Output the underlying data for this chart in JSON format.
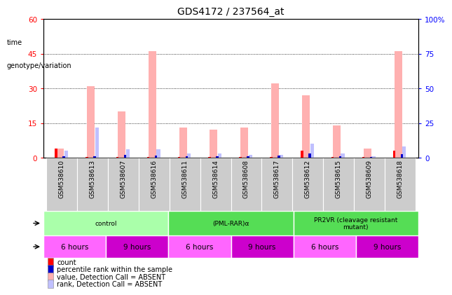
{
  "title": "GDS4172 / 237564_at",
  "samples": [
    "GSM538610",
    "GSM538613",
    "GSM538607",
    "GSM538616",
    "GSM538611",
    "GSM538614",
    "GSM538608",
    "GSM538617",
    "GSM538612",
    "GSM538615",
    "GSM538609",
    "GSM538618"
  ],
  "absent_value_bars": [
    4,
    31,
    20,
    46,
    13,
    12,
    13,
    32,
    27,
    14,
    4,
    46
  ],
  "absent_rank_bars": [
    5,
    22,
    6,
    6,
    3,
    3,
    2,
    2,
    10,
    3,
    1,
    8
  ],
  "count_values": [
    4,
    0.3,
    0.3,
    0.3,
    0.3,
    0.3,
    0.3,
    0.3,
    3,
    0.3,
    0.3,
    3
  ],
  "rank_values": [
    1,
    1,
    2,
    1.5,
    1,
    1,
    1,
    1.5,
    3,
    1,
    0.5,
    2.5
  ],
  "ylim_left": [
    0,
    60
  ],
  "ylim_right": [
    0,
    100
  ],
  "yticks_left": [
    0,
    15,
    30,
    45,
    60
  ],
  "yticks_right": [
    0,
    25,
    50,
    75,
    100
  ],
  "ytick_labels_right": [
    "0",
    "25",
    "50",
    "75",
    "100%"
  ],
  "ytick_labels_left": [
    "0",
    "15",
    "30",
    "45",
    "60"
  ],
  "absent_value_color": "#FFB0B0",
  "absent_rank_color": "#C0C0FF",
  "count_color": "#FF0000",
  "rank_color": "#0000CC",
  "bg_color": "#FFFFFF",
  "sample_bg_color": "#CCCCCC",
  "genotype_groups": [
    {
      "label": "control",
      "start": 0,
      "end": 4,
      "color": "#AAFFAA"
    },
    {
      "label": "(PML-RAR)α",
      "start": 4,
      "end": 8,
      "color": "#55DD55"
    },
    {
      "label": "PR2VR (cleavage resistant\nmutant)",
      "start": 8,
      "end": 12,
      "color": "#55DD55"
    }
  ],
  "time_row": [
    {
      "label": "6 hours",
      "start": 0,
      "end": 2,
      "color": "#FF66FF"
    },
    {
      "label": "9 hours",
      "start": 2,
      "end": 4,
      "color": "#CC00CC"
    },
    {
      "label": "6 hours",
      "start": 4,
      "end": 6,
      "color": "#FF66FF"
    },
    {
      "label": "9 hours",
      "start": 6,
      "end": 8,
      "color": "#CC00CC"
    },
    {
      "label": "6 hours",
      "start": 8,
      "end": 10,
      "color": "#FF66FF"
    },
    {
      "label": "9 hours",
      "start": 10,
      "end": 12,
      "color": "#CC00CC"
    }
  ],
  "legend_items": [
    {
      "label": "count",
      "color": "#FF0000"
    },
    {
      "label": "percentile rank within the sample",
      "color": "#0000CC"
    },
    {
      "label": "value, Detection Call = ABSENT",
      "color": "#FFB0B0"
    },
    {
      "label": "rank, Detection Call = ABSENT",
      "color": "#C0C0FF"
    }
  ]
}
